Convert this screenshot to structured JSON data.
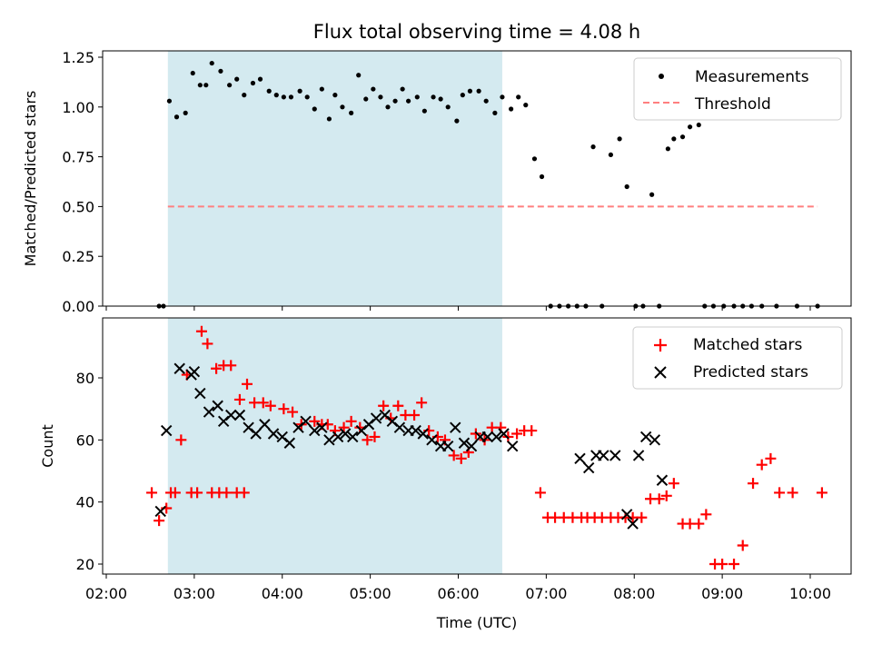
{
  "title": "Flux total observing time = 4.08 h",
  "xlabel": "Time (UTC)",
  "x_ticks": [
    "02:00",
    "03:00",
    "04:00",
    "05:00",
    "06:00",
    "07:00",
    "08:00",
    "09:00",
    "10:00"
  ],
  "colors": {
    "shade": "#d4eaf0",
    "threshold": "#ff7f7f",
    "matched": "#ff0000",
    "predicted": "#000000",
    "measurements": "#000000"
  },
  "chart_data": [
    {
      "type": "scatter",
      "ylabel": "Matched/Predicted stars",
      "xlim": [
        "02:00",
        "10:00"
      ],
      "ylim": [
        0,
        1.28
      ],
      "y_ticks": [
        "0.00",
        "0.25",
        "0.50",
        "0.75",
        "1.00",
        "1.25"
      ],
      "shaded_span": [
        "02:42",
        "06:30"
      ],
      "legend": [
        "Measurements",
        "Threshold"
      ],
      "legend_position": "upper right",
      "threshold": {
        "name": "Threshold",
        "y": 0.5,
        "x": [
          "02:42",
          "10:05"
        ]
      },
      "series": [
        {
          "name": "Measurements",
          "x": [
            "02:36",
            "02:43",
            "02:48",
            "02:54",
            "02:59",
            "03:04",
            "03:08",
            "03:12",
            "03:18",
            "03:24",
            "03:29",
            "03:34",
            "03:40",
            "03:45",
            "03:51",
            "03:56",
            "04:01",
            "04:06",
            "04:12",
            "04:17",
            "04:22",
            "04:27",
            "04:32",
            "04:36",
            "04:41",
            "04:47",
            "04:52",
            "04:57",
            "05:02",
            "05:07",
            "05:12",
            "05:17",
            "05:22",
            "05:26",
            "05:32",
            "05:37",
            "05:43",
            "05:48",
            "05:53",
            "05:59",
            "06:03",
            "06:08",
            "06:14",
            "06:19",
            "06:25",
            "06:30",
            "06:36",
            "06:41",
            "06:46",
            "06:52",
            "06:57",
            "07:03",
            "07:09",
            "07:15",
            "07:21",
            "07:27",
            "07:32",
            "07:38",
            "07:44",
            "07:50",
            "07:55",
            "08:01",
            "08:06",
            "08:12",
            "08:17",
            "08:23",
            "08:27",
            "08:33",
            "08:38",
            "08:44",
            "08:48",
            "08:54",
            "09:01",
            "09:08",
            "09:14",
            "09:20",
            "09:27",
            "09:37",
            "09:51",
            "10:05",
            "02:39"
          ],
          "y": [
            0,
            1.03,
            0.95,
            0.97,
            1.17,
            1.11,
            1.11,
            1.22,
            1.18,
            1.11,
            1.14,
            1.06,
            1.12,
            1.14,
            1.08,
            1.06,
            1.05,
            1.05,
            1.08,
            1.05,
            0.99,
            1.09,
            0.94,
            1.06,
            1.0,
            0.97,
            1.16,
            1.04,
            1.09,
            1.05,
            1.0,
            1.03,
            1.09,
            1.03,
            1.05,
            0.98,
            1.05,
            1.04,
            1.0,
            0.93,
            1.06,
            1.08,
            1.08,
            1.03,
            0.97,
            1.05,
            0.99,
            1.05,
            1.01,
            0.74,
            0.65,
            0,
            0,
            0,
            0,
            0,
            0.8,
            0,
            0.76,
            0.84,
            0.6,
            0,
            0,
            0.56,
            0,
            0.79,
            0.84,
            0.85,
            0.9,
            0.91,
            0,
            0,
            0,
            0,
            0,
            0,
            0,
            0,
            0,
            0,
            0
          ]
        }
      ]
    },
    {
      "type": "scatter",
      "ylabel": "Count",
      "xlim": [
        "02:00",
        "10:00"
      ],
      "ylim": [
        16,
        98
      ],
      "y_ticks": [
        "20",
        "40",
        "60",
        "80"
      ],
      "shaded_span": [
        "02:42",
        "06:30"
      ],
      "legend": [
        "Matched stars",
        "Predicted stars"
      ],
      "legend_position": "upper right",
      "series": [
        {
          "name": "Matched stars",
          "x": [
            "02:36",
            "02:41",
            "02:51",
            "02:55",
            "03:05",
            "03:09",
            "03:15",
            "03:20",
            "03:25",
            "03:31",
            "03:36",
            "03:41",
            "03:47",
            "03:52",
            "04:01",
            "04:07",
            "04:13",
            "04:22",
            "04:27",
            "04:31",
            "04:36",
            "04:42",
            "04:47",
            "04:53",
            "04:58",
            "05:03",
            "05:09",
            "05:14",
            "05:19",
            "05:24",
            "05:30",
            "05:35",
            "05:40",
            "05:46",
            "05:51",
            "05:57",
            "06:02",
            "06:07",
            "06:12",
            "06:18",
            "06:23",
            "06:29",
            "06:34",
            "06:40",
            "06:45",
            "06:50",
            "06:56",
            "07:01",
            "07:06",
            "07:12",
            "07:18",
            "07:24",
            "07:28",
            "07:33",
            "07:38",
            "07:44",
            "07:49",
            "07:54",
            "07:59",
            "08:05",
            "08:11",
            "08:17",
            "08:22",
            "08:27",
            "08:33",
            "08:38",
            "08:44",
            "08:49",
            "08:55",
            "09:00",
            "09:08",
            "09:14",
            "09:21",
            "09:27",
            "09:33",
            "09:39",
            "09:48",
            "10:08",
            "02:44",
            "02:31",
            "02:47",
            "02:58",
            "03:02",
            "03:12",
            "03:17",
            "03:22",
            "03:29",
            "03:34"
          ],
          "y": [
            34,
            38,
            60,
            81,
            95,
            91,
            83,
            84,
            84,
            73,
            78,
            72,
            72,
            71,
            70,
            69,
            65,
            66,
            65,
            65,
            63,
            64,
            66,
            64,
            60,
            61,
            71,
            67,
            71,
            68,
            68,
            72,
            63,
            61,
            60,
            55,
            54,
            56,
            62,
            60,
            64,
            64,
            61,
            62,
            63,
            63,
            43,
            35,
            35,
            35,
            35,
            35,
            35,
            35,
            35,
            35,
            35,
            35,
            35,
            35,
            41,
            41,
            42,
            46,
            33,
            33,
            33,
            36,
            20,
            20,
            20,
            26,
            46,
            52,
            54,
            43,
            43,
            43,
            43,
            43,
            43,
            43,
            43,
            43,
            43,
            43,
            43,
            43
          ]
        }
      ],
      "series_predicted": {
        "name": "Predicted stars",
        "x": [
          "02:37",
          "02:41",
          "02:50",
          "02:58",
          "03:00",
          "03:04",
          "03:10",
          "03:16",
          "03:20",
          "03:25",
          "03:31",
          "03:37",
          "03:42",
          "03:48",
          "03:54",
          "04:00",
          "04:05",
          "04:11",
          "04:16",
          "04:22",
          "04:27",
          "04:32",
          "04:38",
          "04:43",
          "04:48",
          "04:54",
          "04:59",
          "05:04",
          "05:10",
          "05:15",
          "05:20",
          "05:26",
          "05:31",
          "05:36",
          "05:42",
          "05:48",
          "05:53",
          "05:58",
          "06:04",
          "06:09",
          "06:15",
          "06:20",
          "06:26",
          "06:31",
          "06:37",
          "07:23",
          "07:29",
          "07:34",
          "07:39",
          "07:47",
          "07:55",
          "07:59",
          "08:03",
          "08:08",
          "08:14",
          "08:19"
        ],
        "y": [
          37,
          63,
          83,
          81,
          82,
          75,
          69,
          71,
          66,
          68,
          68,
          64,
          62,
          65,
          62,
          61,
          59,
          64,
          66,
          63,
          64,
          60,
          61,
          62,
          61,
          63,
          65,
          67,
          68,
          66,
          64,
          63,
          63,
          62,
          60,
          58,
          58,
          64,
          59,
          58,
          61,
          61,
          61,
          62,
          58,
          54,
          51,
          55,
          55,
          55,
          36,
          33,
          55,
          61,
          60,
          47
        ]
      }
    }
  ]
}
